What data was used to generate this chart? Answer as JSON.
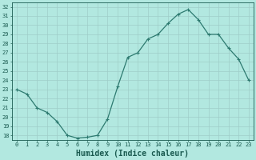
{
  "x": [
    0,
    1,
    2,
    3,
    4,
    5,
    6,
    7,
    8,
    9,
    10,
    11,
    12,
    13,
    14,
    15,
    16,
    17,
    18,
    19,
    20,
    21,
    22,
    23
  ],
  "y": [
    23.0,
    22.5,
    21.0,
    20.5,
    19.5,
    18.0,
    17.7,
    17.8,
    18.0,
    19.8,
    23.3,
    26.5,
    27.0,
    28.5,
    29.0,
    30.2,
    31.2,
    31.7,
    30.6,
    29.0,
    29.0,
    27.5,
    26.3,
    24.0
  ],
  "xlabel": "Humidex (Indice chaleur)",
  "xlim": [
    -0.5,
    23.5
  ],
  "ylim": [
    17.5,
    32.5
  ],
  "xticks": [
    0,
    1,
    2,
    3,
    4,
    5,
    6,
    7,
    8,
    9,
    10,
    11,
    12,
    13,
    14,
    15,
    16,
    17,
    18,
    19,
    20,
    21,
    22,
    23
  ],
  "yticks": [
    18,
    19,
    20,
    21,
    22,
    23,
    24,
    25,
    26,
    27,
    28,
    29,
    30,
    31,
    32
  ],
  "line_color": "#2d7a70",
  "marker": "+",
  "marker_size": 3.5,
  "marker_linewidth": 0.8,
  "bg_color": "#b2e8e0",
  "grid_color": "#9ecec8",
  "tick_label_color": "#1a5a50",
  "xlabel_color": "#1a5a50",
  "tick_fontsize": 5.0,
  "xlabel_fontsize": 7.0,
  "linewidth": 0.9
}
